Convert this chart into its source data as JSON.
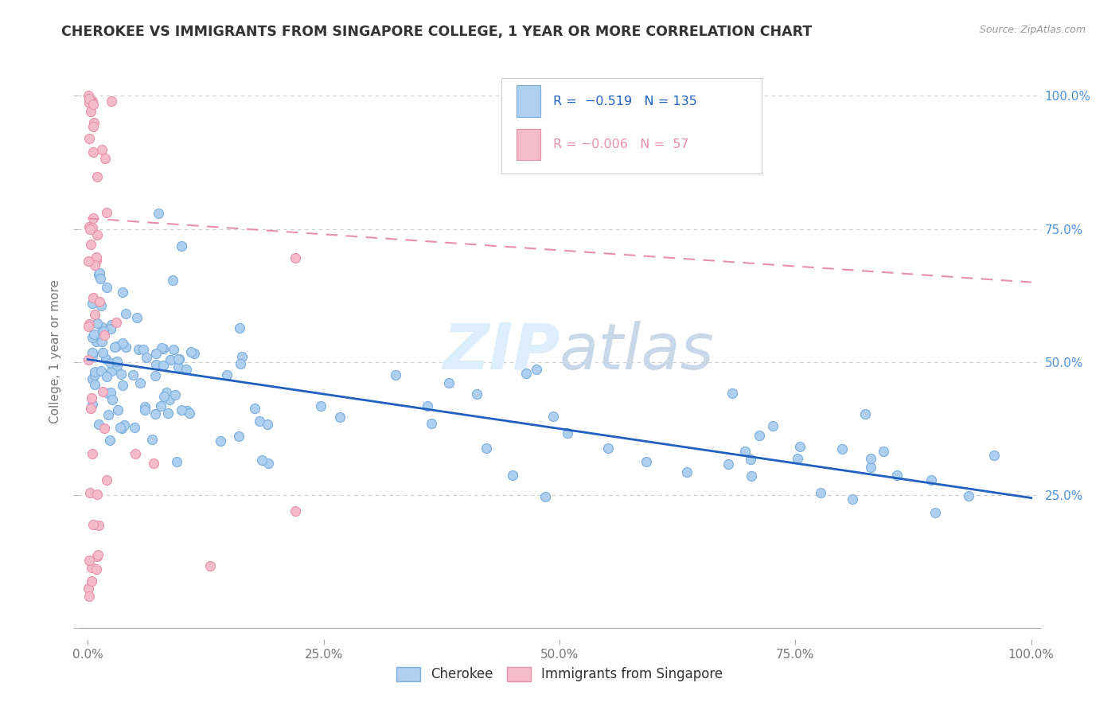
{
  "title": "CHEROKEE VS IMMIGRANTS FROM SINGAPORE COLLEGE, 1 YEAR OR MORE CORRELATION CHART",
  "source": "Source: ZipAtlas.com",
  "ylabel": "College, 1 year or more",
  "cherokee_color": "#aecfee",
  "cherokee_edge_color": "#7aaedd",
  "singapore_color": "#f4bccb",
  "singapore_edge_color": "#e890aa",
  "trendline_cherokee_color": "#2060c0",
  "trendline_singapore_color": "#e890aa",
  "legend_text_blue": "#2060c0",
  "legend_text_pink": "#e890aa",
  "watermark_color": "#ddeeff",
  "grid_color": "#cccccc",
  "tick_color": "#777777",
  "right_tick_color": "#4a90d9"
}
